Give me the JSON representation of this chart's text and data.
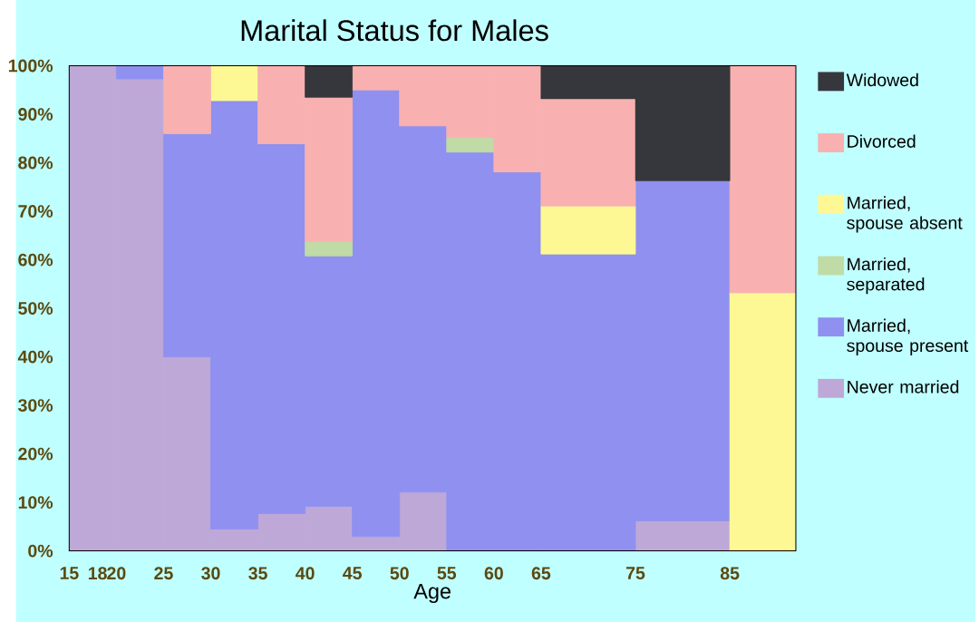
{
  "chart_data": {
    "type": "bar",
    "stacked": true,
    "title": "Marital Status for Males",
    "xlabel": "Age",
    "x": [
      16.5,
      19,
      22.5,
      27.5,
      32.5,
      37.5,
      42.5,
      47.5,
      52.5,
      57.5,
      62.5,
      70,
      80,
      88.5
    ],
    "xlim": [
      15,
      92
    ],
    "xticks": [
      15,
      18,
      20,
      25,
      30,
      35,
      40,
      45,
      50,
      55,
      60,
      65,
      75,
      85
    ],
    "ylim": [
      0,
      100
    ],
    "yticks": [
      {
        "value": 0,
        "label": "0%"
      },
      {
        "value": 10,
        "label": "10%"
      },
      {
        "value": 20,
        "label": "20%"
      },
      {
        "value": 30,
        "label": "30%"
      },
      {
        "value": 40,
        "label": "40%"
      },
      {
        "value": 50,
        "label": "50%"
      },
      {
        "value": 60,
        "label": "60%"
      },
      {
        "value": 70,
        "label": "70%"
      },
      {
        "value": 80,
        "label": "80%"
      },
      {
        "value": 90,
        "label": "90%"
      },
      {
        "value": 100,
        "label": "100%"
      }
    ],
    "legend": "right",
    "grid": false,
    "series": [
      {
        "name": "Never married",
        "color": "#bea8d7",
        "values": [
          100,
          100,
          97.3,
          40,
          4.5,
          7.7,
          9.2,
          3,
          12.1,
          0,
          0,
          0,
          6.2,
          0
        ]
      },
      {
        "name": "Married, spouse present",
        "color": "#8f90f0",
        "values": [
          0,
          0,
          2.7,
          46,
          88.3,
          76.2,
          51.6,
          92,
          75.5,
          82.2,
          78.1,
          61.2,
          70.1,
          0
        ]
      },
      {
        "name": "Married, separated",
        "color": "#c0dba6",
        "values": [
          0,
          0,
          0,
          0,
          0,
          0,
          3,
          0,
          0,
          3,
          0,
          0,
          0,
          0
        ]
      },
      {
        "name": "Married, spouse absent",
        "color": "#fdf894",
        "values": [
          0,
          0,
          0,
          0,
          7.2,
          0,
          0,
          0,
          0,
          0,
          0,
          9.9,
          0,
          53.2
        ]
      },
      {
        "name": "Divorced",
        "color": "#f8b1b0",
        "values": [
          0,
          0,
          0,
          14,
          0,
          16.1,
          29.7,
          5,
          12.4,
          14.8,
          21.9,
          22.1,
          0,
          46.8
        ]
      },
      {
        "name": "Widowed",
        "color": "#36373c",
        "values": [
          0,
          0,
          0,
          0,
          0,
          0,
          6.5,
          0,
          0,
          0,
          0,
          6.8,
          23.7,
          0
        ]
      }
    ]
  }
}
